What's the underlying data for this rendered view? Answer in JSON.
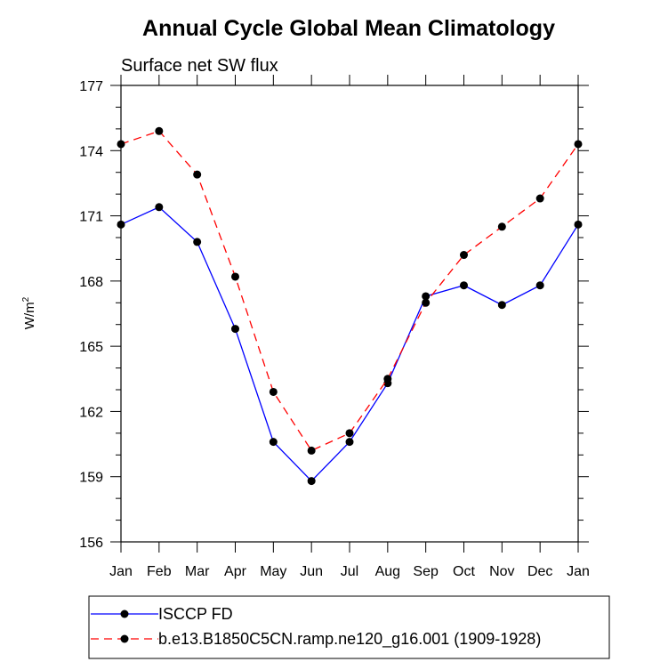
{
  "chart_data": {
    "type": "line",
    "title": "Annual Cycle Global Mean Climatology",
    "subtitle": "Surface net SW flux",
    "ylabel": "W/m",
    "ylabel_superscript": "2",
    "xlabel": "",
    "categories": [
      "Jan",
      "Feb",
      "Mar",
      "Apr",
      "May",
      "Jun",
      "Jul",
      "Aug",
      "Sep",
      "Oct",
      "Nov",
      "Dec",
      "Jan"
    ],
    "ylim": [
      156,
      177
    ],
    "yticks": [
      "156",
      "159",
      "162",
      "165",
      "168",
      "171",
      "174",
      "177"
    ],
    "grid": false,
    "legend_position": "bottom",
    "series": [
      {
        "name": "ISCCP FD",
        "color": "#0000ff",
        "line_style": "solid",
        "values": [
          170.6,
          171.4,
          169.8,
          165.8,
          160.6,
          158.8,
          160.6,
          163.3,
          167.3,
          167.8,
          166.9,
          167.8,
          170.6
        ]
      },
      {
        "name": "b.e13.B1850C5CN.ramp.ne120_g16.001 (1909-1928)",
        "color": "#ff0000",
        "line_style": "dashed",
        "values": [
          174.3,
          174.9,
          172.9,
          168.2,
          162.9,
          160.2,
          161.0,
          163.5,
          167.0,
          169.2,
          170.5,
          171.8,
          174.3
        ]
      }
    ]
  }
}
